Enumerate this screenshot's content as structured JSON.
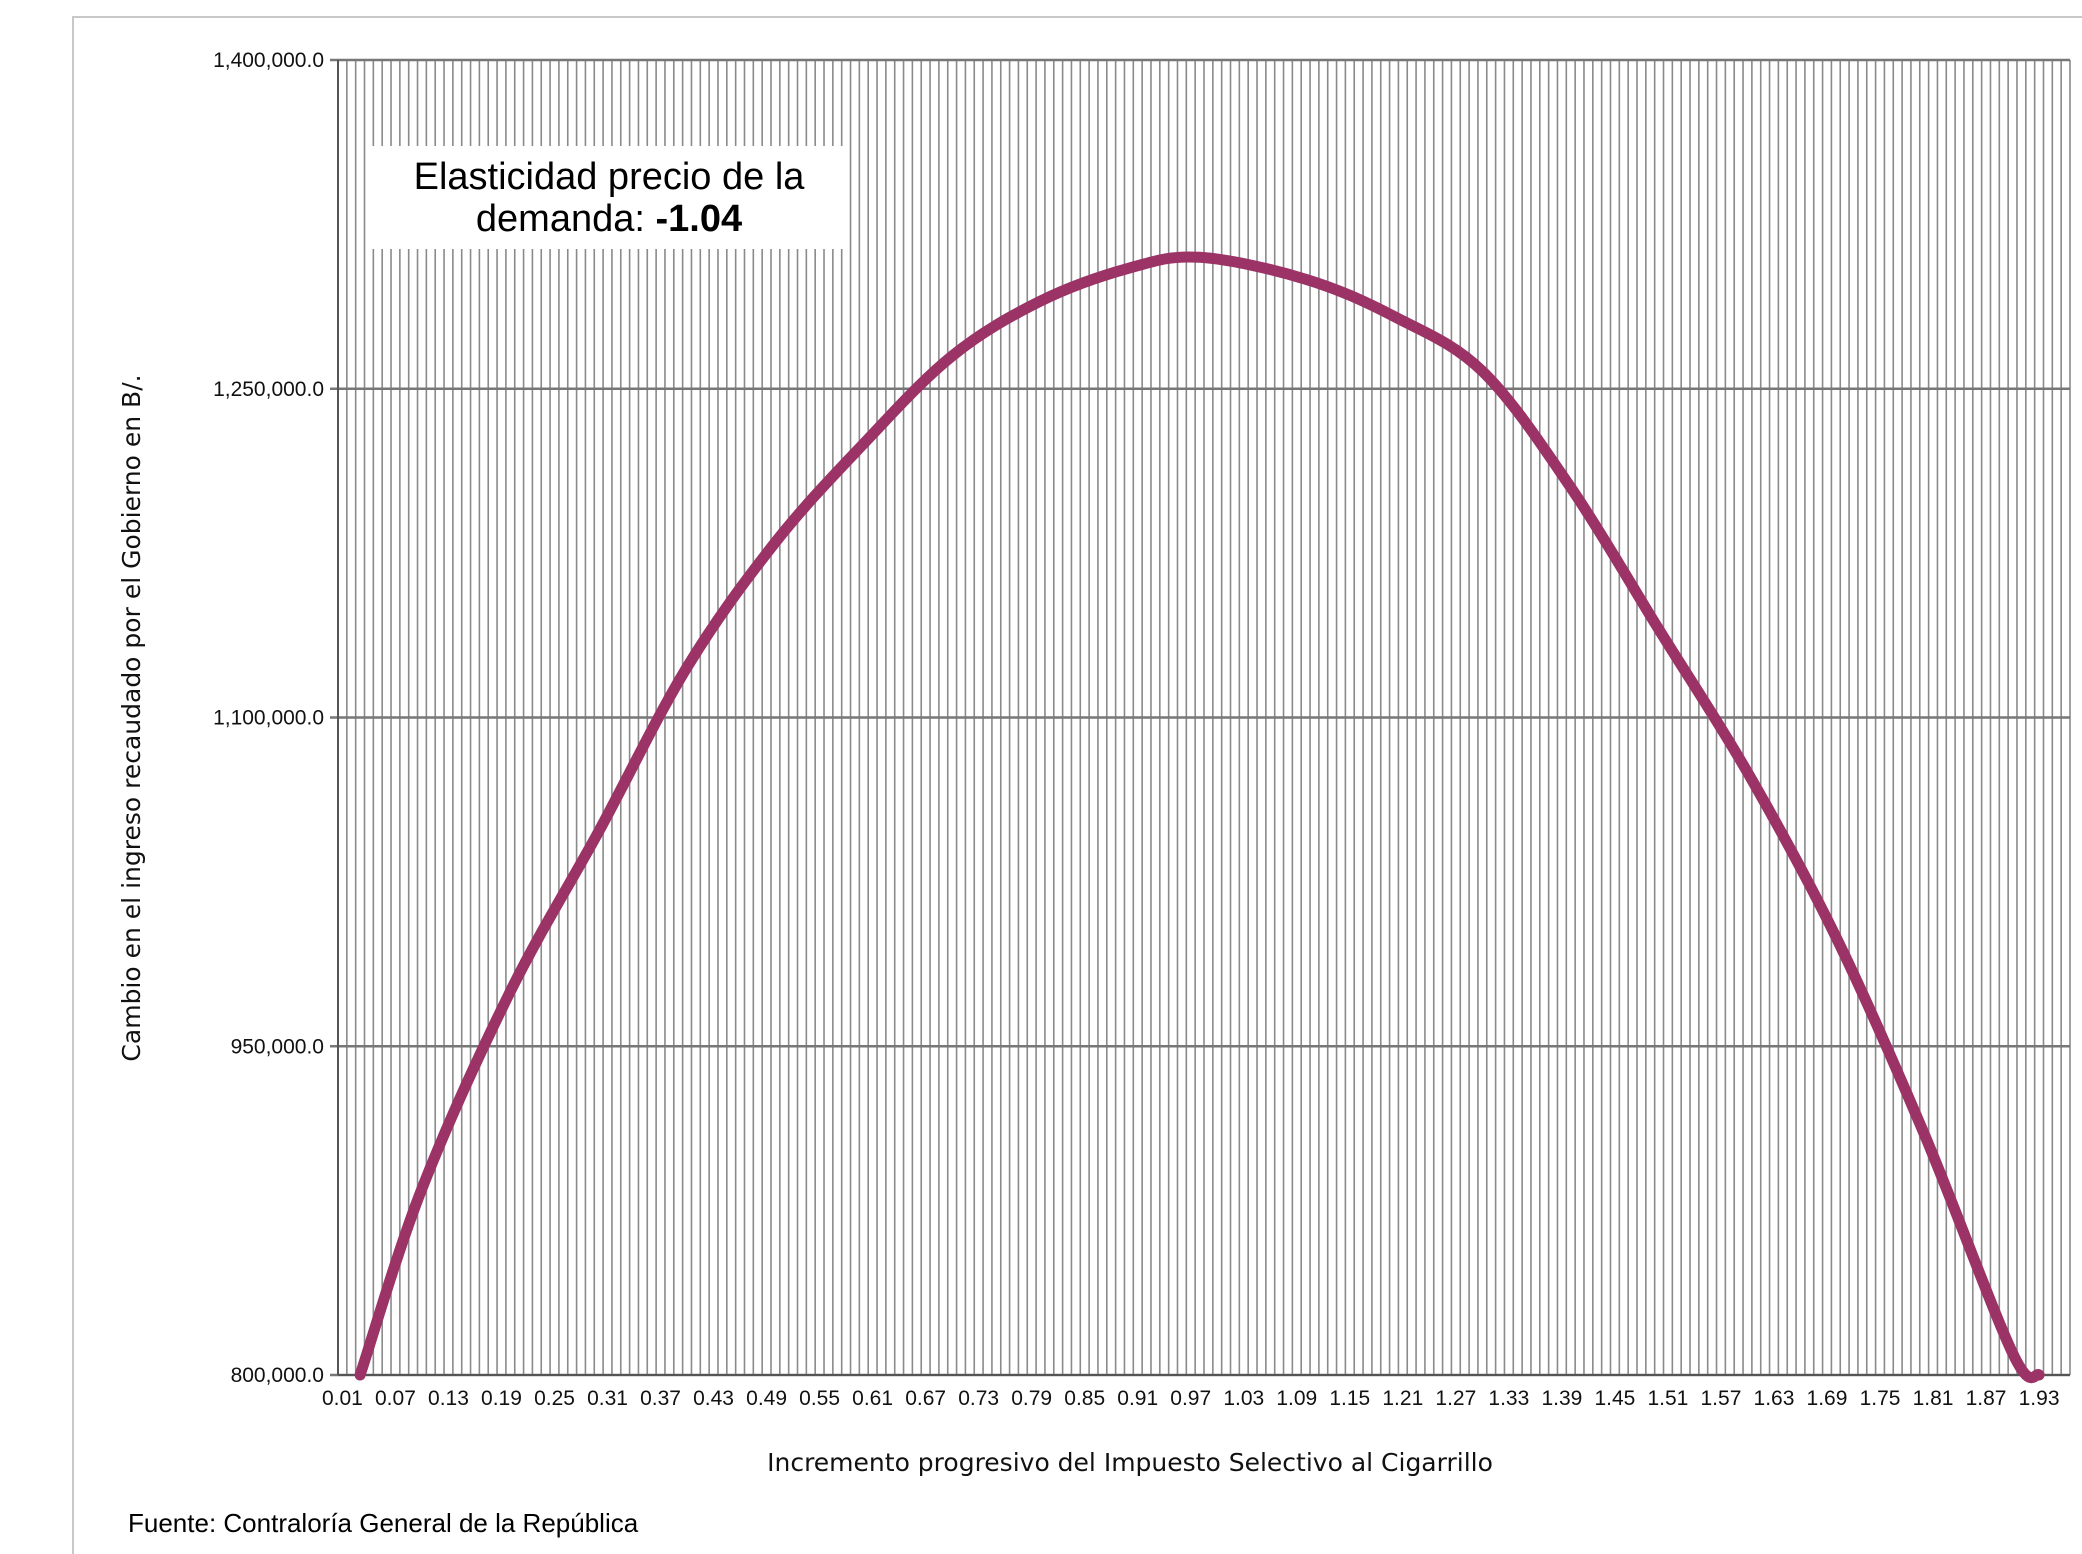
{
  "chart_data": {
    "type": "line",
    "title": "",
    "xlabel": "Incremento progresivo del Impuesto Selectivo al Cigarrillo",
    "ylabel": "Cambio en el ingreso recaudado por el Gobierno en B/.",
    "ylim": [
      800000,
      1400000
    ],
    "yticks": [
      "1,400,000.0",
      "1,250,000.0",
      "1,100,000.0",
      "950,000.0",
      "800,000.0"
    ],
    "ytick_values": [
      1400000,
      1250000,
      1100000,
      950000,
      800000
    ],
    "xticks": [
      "0.01",
      "0.07",
      "0.13",
      "0.19",
      "0.25",
      "0.31",
      "0.37",
      "0.43",
      "0.49",
      "0.55",
      "0.61",
      "0.67",
      "0.73",
      "0.79",
      "0.85",
      "0.91",
      "0.97",
      "1.03",
      "1.09",
      "1.15",
      "1.21",
      "1.27",
      "1.33",
      "1.39",
      "1.45",
      "1.51",
      "1.57",
      "1.63",
      "1.69",
      "1.75",
      "1.81",
      "1.87",
      "1.93"
    ],
    "x_start": 0.01,
    "x_step": 0.01,
    "x_count": 196,
    "grid": "vertical-every-category, horizontal-at-ticks",
    "line_color": "#9b3366",
    "series": [
      {
        "x": [
          0.03,
          0.1,
          0.2,
          0.3,
          0.4,
          0.5,
          0.6,
          0.7,
          0.8,
          0.9,
          0.98,
          1.1,
          1.2,
          1.3,
          1.4,
          1.5,
          1.6,
          1.7,
          1.8,
          1.9,
          1.93
        ],
        "values": [
          800000,
          885000,
          975000,
          1048000,
          1123000,
          1180000,
          1225000,
          1265000,
          1290000,
          1305000,
          1310000,
          1300000,
          1283000,
          1258000,
          1205000,
          1140000,
          1075000,
          1000000,
          910000,
          810000,
          800000
        ]
      }
    ],
    "annotation": {
      "line1": "Elasticidad precio de la",
      "line2_prefix": "demanda: ",
      "line2_bold": "-1.04"
    }
  },
  "source_note": "Fuente: Contraloría General de la República"
}
